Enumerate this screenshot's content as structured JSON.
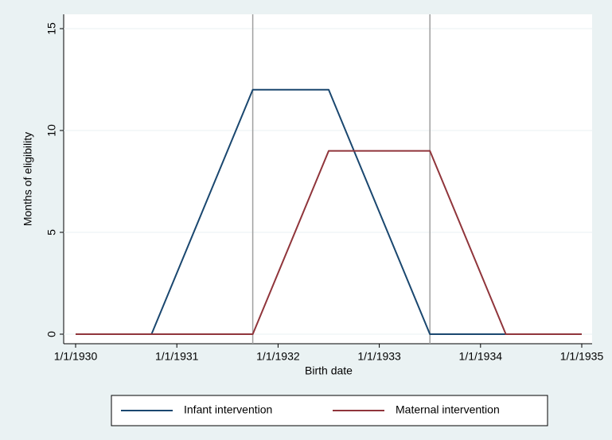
{
  "chart_data": {
    "type": "line",
    "y_label": "Months of eligibility",
    "x_label": "Birth date",
    "x": [
      1930,
      1930.75,
      1931.75,
      1932.5,
      1933.5,
      1934.25,
      1935
    ],
    "series": [
      {
        "name": "Infant intervention",
        "color": "#1a476f",
        "values": [
          0,
          0,
          12,
          12,
          0,
          0,
          0
        ]
      },
      {
        "name": "Maternal intervention",
        "color": "#90353b",
        "values": [
          0,
          0,
          0,
          9,
          9,
          0,
          0
        ]
      }
    ],
    "xlim": [
      1930,
      1935
    ],
    "xticks": [
      {
        "value": 1930,
        "label": "1/1/1930"
      },
      {
        "value": 1931,
        "label": "1/1/1931"
      },
      {
        "value": 1932,
        "label": "1/1/1932"
      },
      {
        "value": 1933,
        "label": "1/1/1933"
      },
      {
        "value": 1934,
        "label": "1/1/1934"
      },
      {
        "value": 1935,
        "label": "1/1/1935"
      }
    ],
    "ylim": [
      0,
      15
    ],
    "yticks": [
      0,
      5,
      10,
      15
    ],
    "grid": true,
    "xlines": [
      1931.75,
      1933.5
    ],
    "xline_color": "#a0a0a0",
    "legend": "bottom"
  }
}
